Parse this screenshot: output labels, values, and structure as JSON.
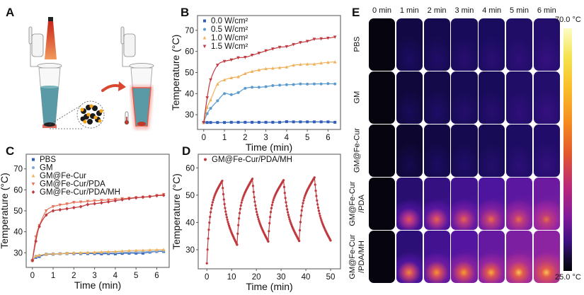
{
  "panels": {
    "A": {
      "letter": "A",
      "description": "Schematic: tube irradiated by laser; nanoparticles heat up; thermometer"
    },
    "B": {
      "letter": "B"
    },
    "C": {
      "letter": "C"
    },
    "D": {
      "letter": "D"
    },
    "E": {
      "letter": "E"
    }
  },
  "chart_data": [
    {
      "id": "B",
      "type": "line",
      "title": "",
      "xlabel": "Time (min)",
      "ylabel": "Temperature (°C)",
      "xlim": [
        -0.3,
        6.6
      ],
      "ylim": [
        23,
        77
      ],
      "xticks": [
        0,
        1,
        2,
        3,
        4,
        5,
        6
      ],
      "yticks": [
        30,
        40,
        50,
        60,
        70
      ],
      "legend_position": "top-left",
      "x": [
        0,
        0.167,
        0.333,
        0.667,
        1,
        1.333,
        1.667,
        2,
        2.333,
        2.667,
        3,
        3.333,
        3.667,
        4,
        4.333,
        4.667,
        5,
        5.333,
        5.667,
        6,
        6.333
      ],
      "series": [
        {
          "name": "0.0 W/cm²",
          "color": "#2f5fb8",
          "marker": "square",
          "values": [
            26.3,
            26.3,
            26.3,
            26.3,
            26.3,
            26.4,
            26.4,
            26.4,
            26.4,
            26.4,
            26.4,
            26.4,
            26.4,
            26.7,
            26.6,
            26.6,
            26.6,
            26.6,
            26.6,
            26.6,
            26.4
          ]
        },
        {
          "name": "0.5 W/cm²",
          "color": "#5b9bd0",
          "marker": "circle",
          "values": [
            26.3,
            30.5,
            33,
            36.6,
            40,
            39.5,
            40.5,
            42.5,
            43,
            43,
            43.3,
            43.8,
            44,
            44.2,
            44.3,
            44.6,
            44.5,
            44.6,
            44.6,
            44.7,
            44.6
          ]
        },
        {
          "name": "1.0 W/cm²",
          "color": "#f0b15a",
          "marker": "triangle-up",
          "values": [
            26.3,
            33.5,
            37,
            44.5,
            46.5,
            47.5,
            48,
            49.5,
            50.5,
            51.2,
            51.8,
            52,
            52.3,
            52.6,
            53.5,
            53.8,
            54,
            54,
            54.5,
            54.8,
            55
          ]
        },
        {
          "name": "1.5 W/cm²",
          "color": "#c0393e",
          "marker": "triangle-down",
          "values": [
            26.3,
            38,
            46.5,
            53.5,
            55.3,
            56,
            57,
            57.2,
            58.2,
            59.2,
            60.3,
            61.2,
            62,
            62.3,
            63.3,
            64.2,
            64.8,
            65.8,
            66,
            66.3,
            66.8
          ]
        }
      ]
    },
    {
      "id": "C",
      "type": "line",
      "title": "",
      "xlabel": "Time (min)",
      "ylabel": "Temperature (°C)",
      "xlim": [
        -0.3,
        6.6
      ],
      "ylim": [
        23,
        77
      ],
      "xticks": [
        0,
        1,
        2,
        3,
        4,
        5,
        6
      ],
      "yticks": [
        30,
        40,
        50,
        60,
        70
      ],
      "legend_position": "top-left",
      "x": [
        0,
        0.167,
        0.333,
        0.667,
        1,
        1.333,
        1.667,
        2,
        2.333,
        2.667,
        3,
        3.333,
        3.667,
        4,
        4.333,
        4.667,
        5,
        5.333,
        5.667,
        6,
        6.333
      ],
      "series": [
        {
          "name": "PBS",
          "color": "#2f5fb8",
          "marker": "square",
          "values": [
            26.3,
            27.8,
            28.2,
            29.2,
            29.3,
            29.5,
            29.6,
            29.6,
            29.6,
            29.6,
            29.6,
            29.5,
            29.6,
            29.5,
            29.7,
            29.8,
            29.8,
            29.8,
            30.3,
            30.6,
            30.6
          ]
        },
        {
          "name": "GM",
          "color": "#7fa8d6",
          "marker": "circle",
          "values": [
            26.3,
            28.3,
            28.7,
            29.4,
            29.5,
            29.6,
            29.7,
            29.8,
            29.8,
            29.9,
            29.9,
            30,
            30,
            30.1,
            30.2,
            30.3,
            30.4,
            30.5,
            30.6,
            30.8,
            30.9
          ]
        },
        {
          "name": "GM@Fe-Cur",
          "color": "#f0b15a",
          "marker": "triangle-up",
          "values": [
            26.3,
            28.4,
            28.8,
            29.3,
            29.5,
            29.6,
            29.8,
            29.9,
            30,
            30.1,
            30.2,
            30.4,
            30.5,
            30.6,
            30.8,
            31,
            31.1,
            31.2,
            31.3,
            31.4,
            31.5
          ]
        },
        {
          "name": "GM@Fe-Cur/PDA",
          "color": "#e8735a",
          "marker": "triangle-down",
          "values": [
            26.3,
            37.5,
            43,
            50,
            52,
            52.8,
            53.3,
            54,
            54.2,
            54.5,
            54.8,
            55,
            55.2,
            55.5,
            55.8,
            56,
            56.3,
            56.5,
            56.8,
            57.3,
            57.8
          ]
        },
        {
          "name": "GM@Fe-Cur/PDA/MH",
          "color": "#c0393e",
          "marker": "diamond",
          "values": [
            26.3,
            35.5,
            42.5,
            48,
            50,
            50.5,
            51,
            51.5,
            52,
            53,
            53.4,
            53.8,
            54.3,
            54.8,
            55.3,
            55.8,
            56.2,
            56.5,
            56.8,
            57.2,
            57.4
          ]
        }
      ]
    },
    {
      "id": "D",
      "type": "line",
      "title": "",
      "xlabel": "Time (min)",
      "ylabel": "Temperature (°C)",
      "xlim": [
        -3.5,
        54
      ],
      "ylim": [
        23,
        65
      ],
      "xticks": [
        0,
        10,
        20,
        30,
        40,
        50
      ],
      "yticks": [
        30,
        40,
        50,
        60
      ],
      "legend_position": "top-left",
      "series": [
        {
          "name": "GM@Fe-Cur/PDA/MH",
          "color": "#c0393e",
          "marker": "circle",
          "cycles": [
            {
              "on_start": 0,
              "on_end": 6.2,
              "start_temp": 25,
              "peak_temp": 55.3,
              "end_time": 12.2,
              "end_temp": 31.8
            },
            {
              "on_start": 12.2,
              "on_end": 18.4,
              "start_temp": 31.8,
              "peak_temp": 56,
              "end_time": 24.8,
              "end_temp": 33
            },
            {
              "on_start": 24.8,
              "on_end": 31,
              "start_temp": 33,
              "peak_temp": 55.5,
              "end_time": 37.3,
              "end_temp": 33.2
            },
            {
              "on_start": 37.3,
              "on_end": 43.5,
              "start_temp": 33.2,
              "peak_temp": 56.5,
              "end_time": 50,
              "end_temp": 33.3
            }
          ]
        }
      ]
    },
    {
      "id": "E",
      "type": "heatmap",
      "title": "",
      "columns": [
        "0 min",
        "1 min",
        "2 min",
        "3 min",
        "4 min",
        "5 min",
        "6 min"
      ],
      "rows": [
        "PBS",
        "GM",
        "GM@Fe-Cur",
        "GM@Fe-Cur /PDA",
        "GM@Fe-Cur /PDA/MH"
      ],
      "row_label_lines": [
        [
          "PBS"
        ],
        [
          "GM"
        ],
        [
          "GM@Fe-Cur"
        ],
        [
          "GM@Fe-Cur",
          "/PDA"
        ],
        [
          "GM@Fe-Cur",
          "/PDA/MH"
        ]
      ],
      "colorbar": {
        "max_label": "70.0 °C",
        "min_label": "25.0 °C",
        "max": 70.0,
        "min": 25.0,
        "colormap": "plasma-like"
      },
      "relative_heat": [
        [
          0.0,
          0.1,
          0.12,
          0.14,
          0.15,
          0.17,
          0.19
        ],
        [
          0.0,
          0.08,
          0.11,
          0.13,
          0.14,
          0.17,
          0.19
        ],
        [
          0.0,
          0.06,
          0.1,
          0.12,
          0.13,
          0.16,
          0.18
        ],
        [
          0.0,
          0.2,
          0.25,
          0.3,
          0.34,
          0.38,
          0.42
        ],
        [
          0.0,
          0.22,
          0.3,
          0.36,
          0.4,
          0.46,
          0.5
        ]
      ],
      "hotspot": [
        [
          0,
          0,
          0,
          0,
          0,
          0,
          0
        ],
        [
          0,
          0,
          0,
          0,
          0,
          0,
          0
        ],
        [
          0,
          0,
          0,
          0,
          0,
          0,
          0
        ],
        [
          0,
          0.75,
          0.78,
          0.78,
          0.8,
          0.8,
          0.8
        ],
        [
          0,
          0.85,
          0.88,
          0.9,
          0.92,
          0.95,
          0.95
        ]
      ]
    }
  ]
}
